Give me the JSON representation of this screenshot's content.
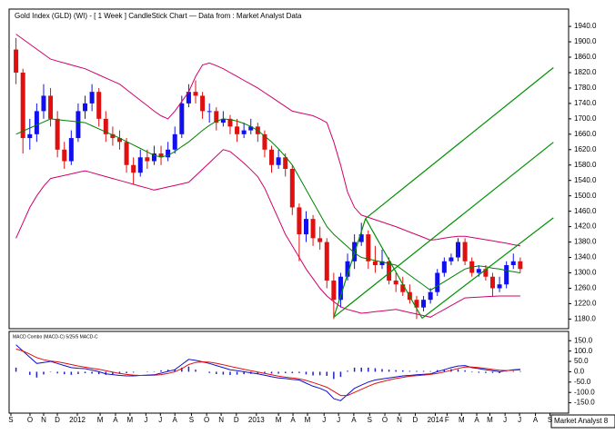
{
  "chart_data": [
    {
      "type": "candlestick",
      "title": "Gold Index (GLD) (WI) - [ 1 Week ] CandleStick Chart — Data from : Market Analyst Data",
      "watermark": "Market Analyst 8",
      "xlim": [
        -1,
        80
      ],
      "ylim": [
        1155,
        1985
      ],
      "yticks": [
        {
          "value": 1940,
          "label": "1940.0"
        },
        {
          "value": 1900,
          "label": "1900.0"
        },
        {
          "value": 1860,
          "label": "1860.0"
        },
        {
          "value": 1820,
          "label": "1820.0"
        },
        {
          "value": 1780,
          "label": "1780.0"
        },
        {
          "value": 1740,
          "label": "1740.0"
        },
        {
          "value": 1700,
          "label": "1700.0"
        },
        {
          "value": 1660,
          "label": "1660.0"
        },
        {
          "value": 1620,
          "label": "1620.0"
        },
        {
          "value": 1580,
          "label": "1580.0"
        },
        {
          "value": 1540,
          "label": "1540.0"
        },
        {
          "value": 1500,
          "label": "1500.0"
        },
        {
          "value": 1460,
          "label": "1460.0"
        },
        {
          "value": 1420,
          "label": "1420.0"
        },
        {
          "value": 1380,
          "label": "1380.0"
        },
        {
          "value": 1340,
          "label": "1340.0"
        },
        {
          "value": 1300,
          "label": "1300.0"
        },
        {
          "value": 1260,
          "label": "1260.0"
        },
        {
          "value": 1220,
          "label": "1220.0"
        },
        {
          "value": 1180,
          "label": "1180.0"
        }
      ],
      "up_color": "#1010ee",
      "down_color": "#e01010",
      "candles": [
        [
          1880,
          1910,
          1790,
          1820
        ],
        [
          1820,
          1830,
          1610,
          1650
        ],
        [
          1650,
          1700,
          1620,
          1660
        ],
        [
          1660,
          1740,
          1640,
          1720
        ],
        [
          1720,
          1790,
          1700,
          1760
        ],
        [
          1760,
          1780,
          1680,
          1700
        ],
        [
          1700,
          1720,
          1600,
          1620
        ],
        [
          1620,
          1640,
          1570,
          1590
        ],
        [
          1590,
          1670,
          1580,
          1650
        ],
        [
          1650,
          1740,
          1640,
          1720
        ],
        [
          1720,
          1760,
          1700,
          1740
        ],
        [
          1740,
          1790,
          1720,
          1770
        ],
        [
          1770,
          1780,
          1680,
          1700
        ],
        [
          1700,
          1720,
          1640,
          1660
        ],
        [
          1660,
          1680,
          1630,
          1650
        ],
        [
          1650,
          1670,
          1620,
          1640
        ],
        [
          1640,
          1650,
          1560,
          1580
        ],
        [
          1580,
          1600,
          1530,
          1560
        ],
        [
          1560,
          1620,
          1550,
          1600
        ],
        [
          1600,
          1620,
          1570,
          1590
        ],
        [
          1590,
          1630,
          1580,
          1610
        ],
        [
          1610,
          1630,
          1580,
          1600
        ],
        [
          1600,
          1640,
          1590,
          1620
        ],
        [
          1620,
          1680,
          1610,
          1660
        ],
        [
          1660,
          1760,
          1650,
          1740
        ],
        [
          1740,
          1790,
          1730,
          1770
        ],
        [
          1770,
          1800,
          1740,
          1760
        ],
        [
          1760,
          1770,
          1700,
          1720
        ],
        [
          1720,
          1740,
          1690,
          1720
        ],
        [
          1720,
          1730,
          1670,
          1690
        ],
        [
          1690,
          1720,
          1680,
          1700
        ],
        [
          1700,
          1710,
          1660,
          1680
        ],
        [
          1680,
          1700,
          1640,
          1660
        ],
        [
          1660,
          1690,
          1650,
          1670
        ],
        [
          1670,
          1700,
          1660,
          1680
        ],
        [
          1680,
          1690,
          1640,
          1660
        ],
        [
          1660,
          1670,
          1600,
          1620
        ],
        [
          1620,
          1630,
          1560,
          1580
        ],
        [
          1580,
          1620,
          1570,
          1600
        ],
        [
          1600,
          1610,
          1550,
          1570
        ],
        [
          1570,
          1580,
          1450,
          1470
        ],
        [
          1470,
          1480,
          1330,
          1400
        ],
        [
          1400,
          1460,
          1380,
          1440
        ],
        [
          1440,
          1450,
          1370,
          1390
        ],
        [
          1390,
          1420,
          1360,
          1380
        ],
        [
          1380,
          1390,
          1260,
          1280
        ],
        [
          1280,
          1300,
          1180,
          1230
        ],
        [
          1230,
          1300,
          1210,
          1290
        ],
        [
          1290,
          1350,
          1280,
          1330
        ],
        [
          1330,
          1400,
          1310,
          1380
        ],
        [
          1380,
          1430,
          1370,
          1400
        ],
        [
          1400,
          1410,
          1310,
          1330
        ],
        [
          1330,
          1370,
          1300,
          1320
        ],
        [
          1320,
          1360,
          1310,
          1330
        ],
        [
          1330,
          1340,
          1270,
          1280
        ],
        [
          1280,
          1300,
          1250,
          1270
        ],
        [
          1270,
          1290,
          1240,
          1250
        ],
        [
          1250,
          1270,
          1220,
          1230
        ],
        [
          1230,
          1240,
          1180,
          1210
        ],
        [
          1210,
          1240,
          1200,
          1230
        ],
        [
          1230,
          1260,
          1220,
          1250
        ],
        [
          1250,
          1310,
          1240,
          1300
        ],
        [
          1300,
          1340,
          1290,
          1330
        ],
        [
          1330,
          1350,
          1320,
          1340
        ],
        [
          1340,
          1390,
          1330,
          1380
        ],
        [
          1380,
          1390,
          1320,
          1330
        ],
        [
          1330,
          1340,
          1290,
          1300
        ],
        [
          1300,
          1320,
          1290,
          1310
        ],
        [
          1310,
          1320,
          1280,
          1290
        ],
        [
          1290,
          1300,
          1240,
          1260
        ],
        [
          1260,
          1290,
          1250,
          1270
        ],
        [
          1270,
          1330,
          1260,
          1320
        ],
        [
          1320,
          1350,
          1310,
          1330
        ],
        [
          1330,
          1340,
          1300,
          1310
        ]
      ],
      "overlays": [
        {
          "color": "#d0006a",
          "values": [
            1920,
            1907,
            1894,
            1881,
            1868,
            1855,
            1850,
            1845,
            1840,
            1835,
            1830,
            1822,
            1814,
            1806,
            1798,
            1790,
            1776,
            1762,
            1748,
            1734,
            1720,
            1708,
            1700,
            1720,
            1745,
            1770,
            1810,
            1840,
            1845,
            1838,
            1830,
            1820,
            1810,
            1800,
            1790,
            1780,
            1768,
            1756,
            1744,
            1732,
            1720,
            1716,
            1712,
            1708,
            1700,
            1690,
            1640,
            1580,
            1510,
            1470,
            1450,
            1444,
            1438,
            1432,
            1426,
            1420,
            1413,
            1406,
            1399,
            1392,
            1385,
            1387,
            1390,
            1393,
            1395,
            1395,
            1392,
            1389,
            1386,
            1383,
            1380,
            1377,
            1373,
            1370
          ]
        },
        {
          "color": "#d0006a",
          "values": [
            1390,
            1430,
            1470,
            1500,
            1525,
            1545,
            1549,
            1553,
            1557,
            1561,
            1565,
            1560,
            1555,
            1550,
            1545,
            1540,
            1535,
            1530,
            1525,
            1520,
            1515,
            1519,
            1523,
            1527,
            1531,
            1535,
            1552,
            1569,
            1586,
            1603,
            1620,
            1615,
            1600,
            1585,
            1568,
            1550,
            1520,
            1480,
            1440,
            1400,
            1370,
            1340,
            1310,
            1285,
            1260,
            1240,
            1225,
            1212,
            1205,
            1200,
            1195,
            1197,
            1199,
            1201,
            1203,
            1205,
            1201,
            1197,
            1193,
            1189,
            1185,
            1195,
            1205,
            1215,
            1225,
            1235,
            1236,
            1237,
            1238,
            1239,
            1240,
            1240,
            1240,
            1240
          ]
        },
        {
          "color": "#008000",
          "values": [
            1660,
            1668,
            1676,
            1684,
            1692,
            1700,
            1698,
            1696,
            1694,
            1692,
            1690,
            1682,
            1674,
            1666,
            1658,
            1650,
            1641,
            1632,
            1623,
            1614,
            1605,
            1601,
            1605,
            1615,
            1628,
            1640,
            1655,
            1670,
            1683,
            1694,
            1700,
            1698,
            1694,
            1688,
            1680,
            1670,
            1655,
            1640,
            1622,
            1602,
            1580,
            1548,
            1516,
            1484,
            1452,
            1420,
            1400,
            1384,
            1368,
            1352,
            1340,
            1336,
            1332,
            1328,
            1324,
            1320,
            1307,
            1294,
            1281,
            1268,
            1255,
            1266,
            1277,
            1288,
            1299,
            1310,
            1315,
            1318,
            1316,
            1312,
            1310,
            1306,
            1303,
            1300
          ]
        }
      ],
      "trendline_color": "#009000",
      "trendlines": [
        {
          "x": [
            46,
            50.6
          ],
          "y": [
            1185,
            1441
          ]
        },
        {
          "x": [
            50.6,
            77.8
          ],
          "y": [
            1441,
            1833
          ]
        },
        {
          "x": [
            46,
            77.8
          ],
          "y": [
            1185,
            1639
          ]
        },
        {
          "x": [
            58.8,
            77.8
          ],
          "y": [
            1182,
            1443
          ]
        },
        {
          "x": [
            50.6,
            58.8
          ],
          "y": [
            1441,
            1182
          ]
        }
      ]
    },
    {
      "type": "line",
      "title": "MACD Combo (MACD-C) 5/25/5 MACD-C",
      "xlim": [
        -1,
        80
      ],
      "ylim": [
        -200,
        195
      ],
      "yticks": [
        {
          "value": 150,
          "label": "150.0"
        },
        {
          "value": 100,
          "label": "100.0"
        },
        {
          "value": 50,
          "label": "50.0"
        },
        {
          "value": 0,
          "label": "0.0"
        },
        {
          "value": -50,
          "label": "-50.0"
        },
        {
          "value": -100,
          "label": "-100.0"
        },
        {
          "value": -150,
          "label": "-150.0"
        }
      ],
      "xticks": [
        {
          "value": -0.74,
          "label": "S"
        },
        {
          "value": 2.03,
          "label": "O"
        },
        {
          "value": 4.0,
          "label": "N"
        },
        {
          "value": 5.98,
          "label": "D"
        },
        {
          "value": 8.88,
          "label": "2012"
        },
        {
          "value": 12.18,
          "label": "M"
        },
        {
          "value": 14.4,
          "label": "A"
        },
        {
          "value": 16.5,
          "label": "M"
        },
        {
          "value": 18.8,
          "label": "J"
        },
        {
          "value": 20.9,
          "label": "J"
        },
        {
          "value": 23.0,
          "label": "A"
        },
        {
          "value": 25.4,
          "label": "S"
        },
        {
          "value": 27.6,
          "label": "O"
        },
        {
          "value": 29.7,
          "label": "N"
        },
        {
          "value": 31.9,
          "label": "D"
        },
        {
          "value": 34.8,
          "label": "2013"
        },
        {
          "value": 38.0,
          "label": "M"
        },
        {
          "value": 40.1,
          "label": "A"
        },
        {
          "value": 42.2,
          "label": "M"
        },
        {
          "value": 44.6,
          "label": "J"
        },
        {
          "value": 46.7,
          "label": "J"
        },
        {
          "value": 48.9,
          "label": "A"
        },
        {
          "value": 51.2,
          "label": "S"
        },
        {
          "value": 53.4,
          "label": "O"
        },
        {
          "value": 55.5,
          "label": "N"
        },
        {
          "value": 57.8,
          "label": "D"
        },
        {
          "value": 60.7,
          "label": "2014"
        },
        {
          "value": 62.4,
          "label": "F"
        },
        {
          "value": 64.5,
          "label": "M"
        },
        {
          "value": 66.7,
          "label": "A"
        },
        {
          "value": 68.6,
          "label": "M"
        },
        {
          "value": 70.8,
          "label": "J"
        },
        {
          "value": 72.9,
          "label": "J"
        },
        {
          "value": 75.2,
          "label": "A"
        },
        {
          "value": 77.3,
          "label": "S"
        }
      ],
      "histogram_color": "#2020cc",
      "histogram": [
        20,
        0,
        -15,
        -28,
        -13,
        -2,
        -8,
        -12,
        -15,
        -11,
        -7,
        -9,
        -12,
        -15,
        -12,
        -10,
        -7,
        -4,
        0,
        2,
        2,
        7,
        10,
        10,
        20,
        25,
        10,
        0,
        -6,
        -11,
        -14,
        -16,
        -14,
        -12,
        -10,
        -9,
        -9,
        -9,
        -9,
        -7,
        -7,
        -6,
        -13,
        -18,
        -17,
        -20,
        -35,
        -25,
        5,
        20,
        20,
        20,
        17,
        13,
        10,
        8,
        7,
        4,
        4,
        4,
        3,
        8,
        11,
        13,
        12,
        7,
        -3,
        -5,
        -6,
        -6,
        -7,
        -1,
        3,
        3
      ],
      "series": [
        {
          "color": "#1010cc",
          "values": [
            130,
            100,
            70,
            40,
            45,
            50,
            40,
            30,
            20,
            17,
            15,
            8,
            0,
            -10,
            -14,
            -18,
            -20,
            -20,
            -18,
            -16,
            -15,
            -7,
            2,
            10,
            35,
            60,
            55,
            48,
            40,
            30,
            20,
            10,
            5,
            0,
            -5,
            -10,
            -17,
            -24,
            -30,
            -33,
            -37,
            -40,
            -55,
            -70,
            -80,
            -95,
            -130,
            -140,
            -110,
            -80,
            -65,
            -50,
            -40,
            -35,
            -30,
            -25,
            -20,
            -18,
            -15,
            -12,
            -10,
            0,
            10,
            20,
            28,
            30,
            20,
            15,
            10,
            5,
            0,
            5,
            10,
            12
          ]
        },
        {
          "color": "#e01010",
          "values": [
            110,
            100,
            85,
            68,
            58,
            52,
            48,
            42,
            35,
            28,
            22,
            17,
            12,
            5,
            -2,
            -8,
            -13,
            -16,
            -18,
            -18,
            -17,
            -14,
            -8,
            0,
            15,
            35,
            45,
            48,
            46,
            41,
            34,
            26,
            19,
            12,
            5,
            -1,
            -8,
            -15,
            -21,
            -26,
            -30,
            -34,
            -42,
            -52,
            -63,
            -75,
            -95,
            -115,
            -115,
            -100,
            -85,
            -70,
            -57,
            -48,
            -40,
            -33,
            -27,
            -22,
            -19,
            -16,
            -13,
            -8,
            -1,
            7,
            16,
            23,
            23,
            20,
            16,
            11,
            7,
            6,
            7,
            9
          ]
        }
      ]
    }
  ]
}
